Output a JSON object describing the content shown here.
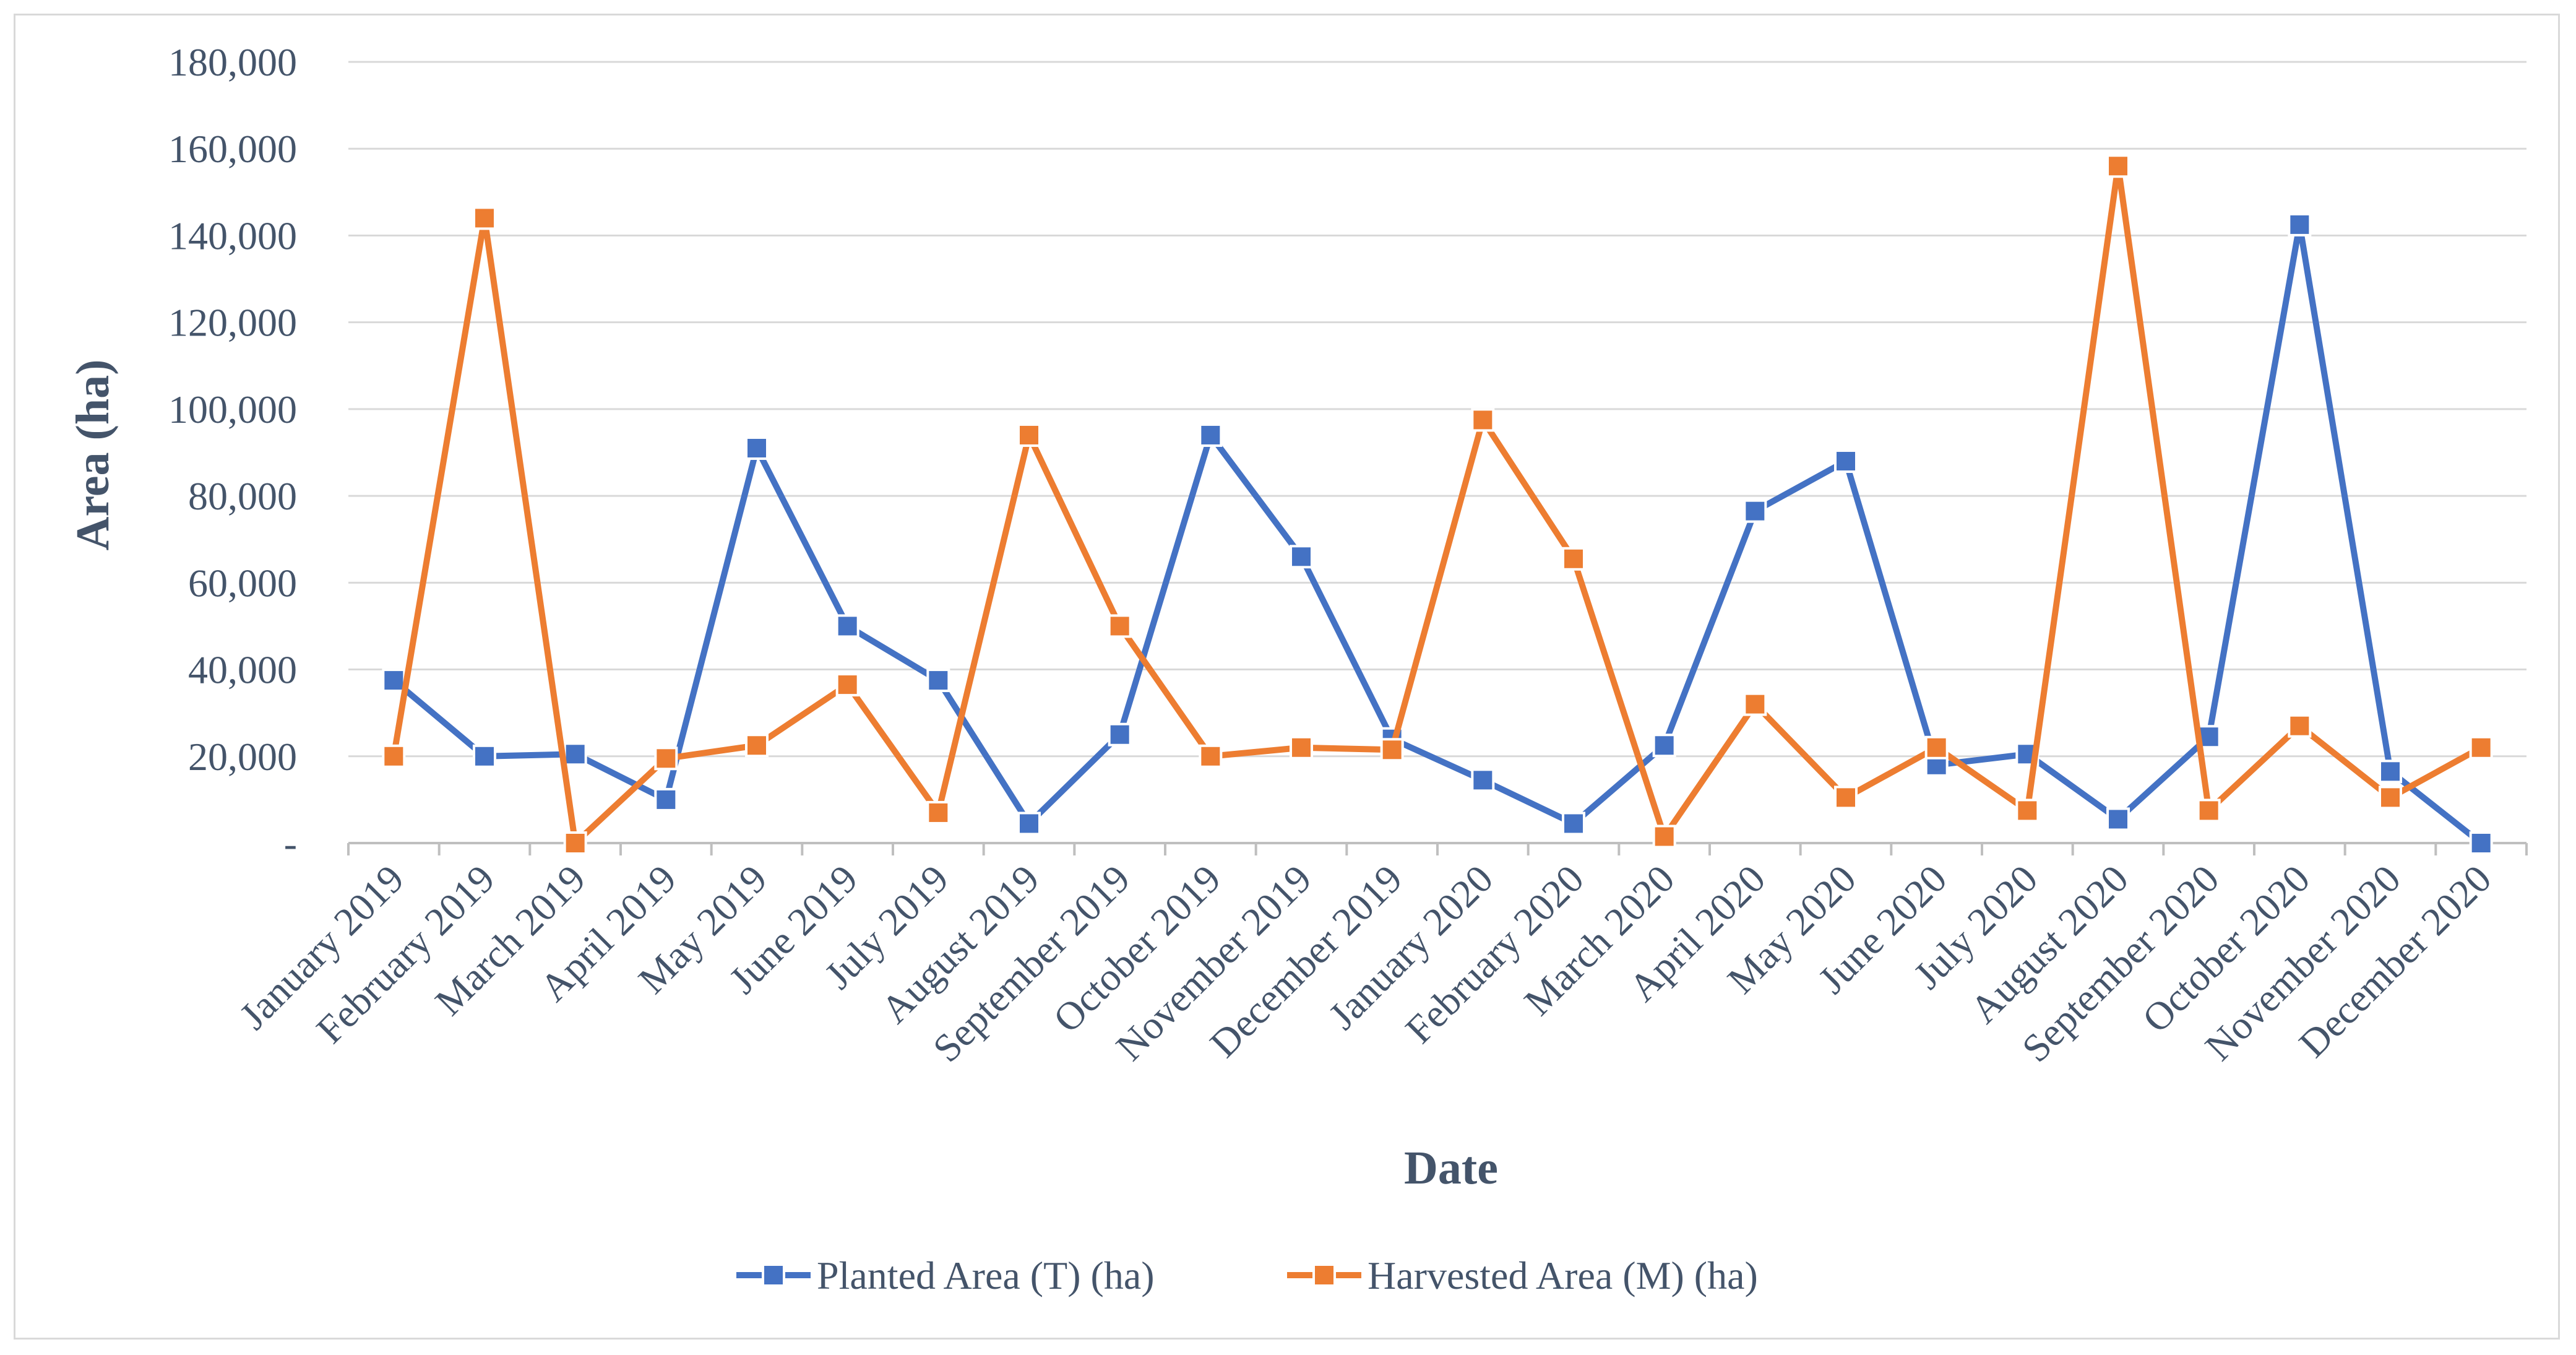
{
  "chart_data": {
    "type": "line",
    "title": "",
    "xlabel": "Date",
    "ylabel": "Area (ha)",
    "ylim": [
      0,
      180000
    ],
    "yticks": [
      0,
      20000,
      40000,
      60000,
      80000,
      100000,
      120000,
      140000,
      160000,
      180000
    ],
    "ytick_labels": [
      "-",
      "20,000",
      "40,000",
      "60,000",
      "80,000",
      "100,000",
      "120,000",
      "140,000",
      "160,000",
      "180,000"
    ],
    "grid": true,
    "legend_position": "bottom",
    "categories": [
      "January 2019",
      "February 2019",
      "March 2019",
      "April 2019",
      "May 2019",
      "June 2019",
      "July 2019",
      "August 2019",
      "September 2019",
      "October 2019",
      "November 2019",
      "December 2019",
      "January 2020",
      "February 2020",
      "March 2020",
      "April 2020",
      "May 2020",
      "June 2020",
      "July 2020",
      "August 2020",
      "September 2020",
      "October 2020",
      "November 2020",
      "December 2020"
    ],
    "series": [
      {
        "name": "Planted Area (T) (ha)",
        "color": "#4472c4",
        "values": [
          37500,
          20000,
          20500,
          10000,
          91000,
          50000,
          37500,
          4500,
          25000,
          94000,
          66000,
          24000,
          14500,
          4500,
          22500,
          76500,
          88000,
          18000,
          20500,
          5500,
          24500,
          142500,
          16500,
          0
        ]
      },
      {
        "name": "Harvested Area (M) (ha)",
        "color": "#ed7d31",
        "values": [
          20000,
          144000,
          0,
          19500,
          22500,
          36500,
          7000,
          94000,
          50000,
          20000,
          22000,
          21500,
          97500,
          65500,
          1500,
          32000,
          10500,
          22000,
          7500,
          156000,
          7500,
          27000,
          10500,
          22000
        ]
      }
    ]
  }
}
